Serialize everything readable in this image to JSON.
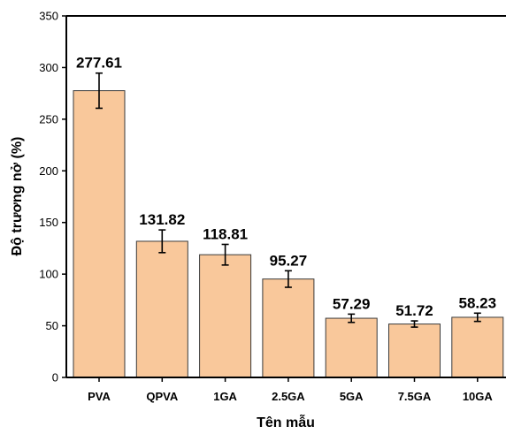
{
  "chart_data": {
    "type": "bar",
    "title": "",
    "xlabel": "Tên mẫu",
    "ylabel": "Độ trương nở (%)",
    "ylim": [
      0,
      350
    ],
    "yticks": [
      "0",
      "50",
      "100",
      "150",
      "200",
      "250",
      "300",
      "350"
    ],
    "categories": [
      "PVA",
      "QPVA",
      "1GA",
      "2.5GA",
      "5GA",
      "7.5GA",
      "10GA"
    ],
    "values": [
      277.61,
      131.82,
      118.81,
      95.27,
      57.29,
      51.72,
      58.23
    ],
    "value_labels": [
      "277.61",
      "131.82",
      "118.81",
      "95.27",
      "57.29",
      "51.72",
      "58.23"
    ],
    "errors": [
      17,
      11,
      10,
      8,
      4,
      3,
      4
    ],
    "grid": false,
    "legend": "none",
    "colors": {
      "bar_fill": "#f9c89b",
      "bar_stroke": "#3a3a3a",
      "axis": "#000000"
    }
  }
}
